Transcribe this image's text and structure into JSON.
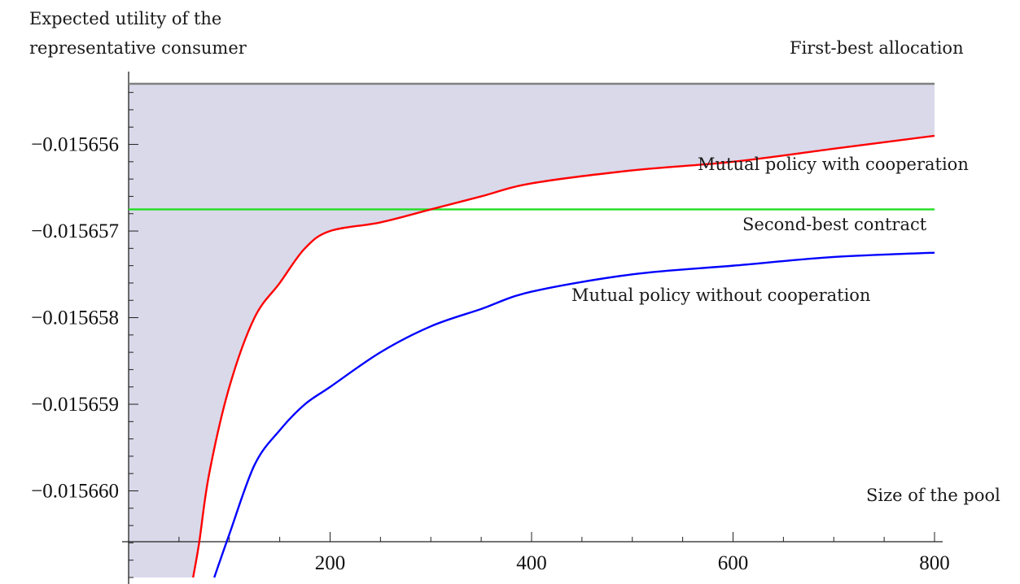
{
  "chart_data": {
    "type": "line",
    "title": "",
    "ylabel_lines": [
      "Expected utility of the",
      "representative consumer"
    ],
    "xlabel": "Size of the pool",
    "xlim": [
      0,
      800
    ],
    "ylim": [
      -0.015661,
      -0.0156553
    ],
    "x_ticks": [
      200,
      400,
      600,
      800
    ],
    "x_tick_labels": [
      "200",
      "400",
      "600",
      "800"
    ],
    "y_ticks": [
      -0.015656,
      -0.015657,
      -0.015658,
      -0.015659,
      -0.01566
    ],
    "y_tick_labels": [
      "−0.015656",
      "−0.015657",
      "−0.015658",
      "−0.015659",
      "−0.015660"
    ],
    "grid": false,
    "shaded_region": "between first-best allocation and mutual policy with cooperation",
    "series": [
      {
        "name": "First-best allocation",
        "color": "#808080",
        "x": [
          0,
          800
        ],
        "y": [
          -0.0156553,
          -0.0156553
        ]
      },
      {
        "name": "Second-best contract",
        "color": "#22dd22",
        "x": [
          0,
          800
        ],
        "y": [
          -0.01565675,
          -0.01565675
        ]
      },
      {
        "name": "Mutual policy with cooperation",
        "color": "#ff0000",
        "x": [
          64,
          70,
          80,
          100,
          125,
          150,
          175,
          200,
          250,
          300,
          350,
          400,
          500,
          600,
          700,
          800
        ],
        "y": [
          -0.015661,
          -0.0156606,
          -0.0156598,
          -0.0156588,
          -0.015658,
          -0.0156576,
          -0.0156572,
          -0.015657,
          -0.0156569,
          -0.01565675,
          -0.0156566,
          -0.01565645,
          -0.0156563,
          -0.0156562,
          -0.01565605,
          -0.0156559
        ]
      },
      {
        "name": "Mutual policy without cooperation",
        "color": "#0000ff",
        "x": [
          85,
          100,
          125,
          150,
          175,
          200,
          250,
          300,
          350,
          400,
          500,
          600,
          700,
          800
        ],
        "y": [
          -0.015661,
          -0.0156605,
          -0.0156597,
          -0.0156593,
          -0.015659,
          -0.0156588,
          -0.0156584,
          -0.0156581,
          -0.0156579,
          -0.0156577,
          -0.0156575,
          -0.0156574,
          -0.0156573,
          -0.01565725
        ]
      }
    ]
  },
  "labels": {
    "ylabel_line1": "Expected utility of the",
    "ylabel_line2": "representative consumer",
    "xlabel": "Size of the pool",
    "first_best": "First-best allocation",
    "with_coop": "Mutual policy with cooperation",
    "second_best": "Second-best contract",
    "without_coop": "Mutual policy without cooperation"
  }
}
